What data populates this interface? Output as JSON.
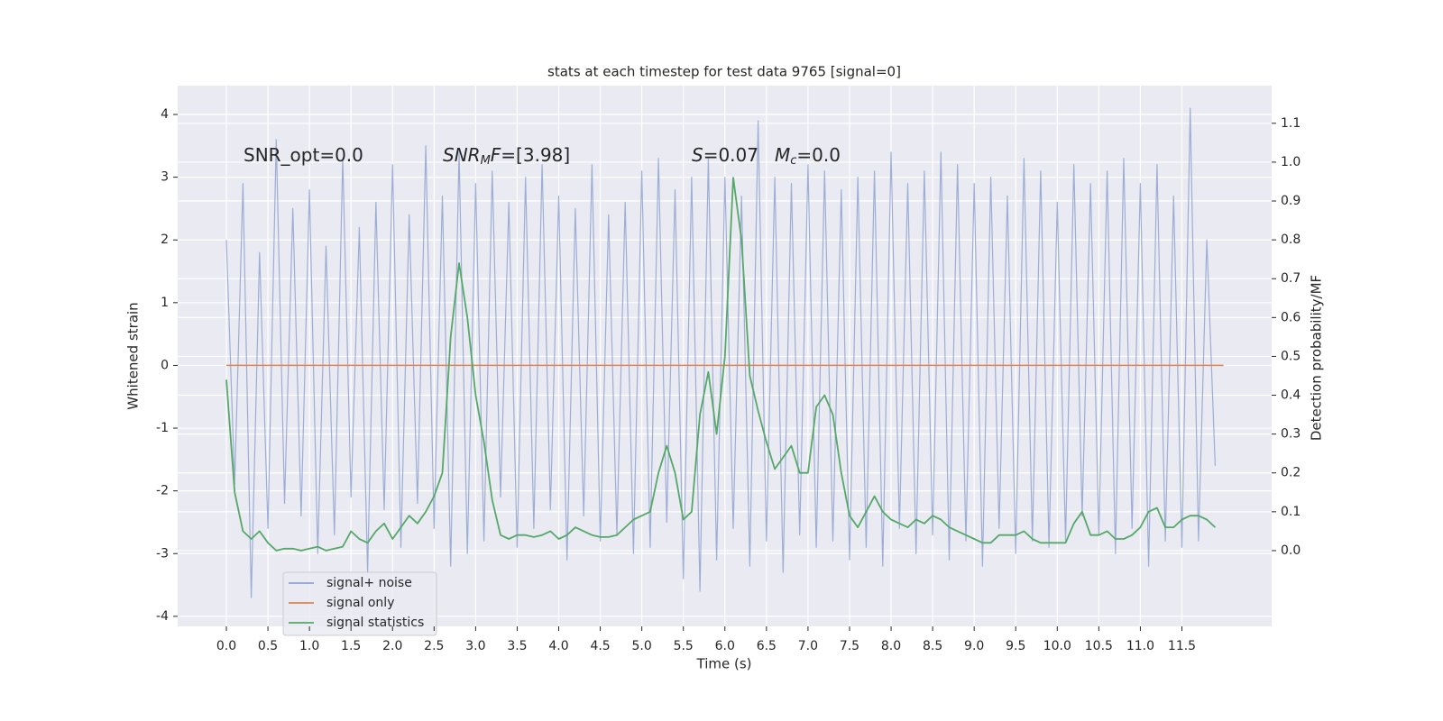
{
  "chart_data": {
    "type": "line",
    "title": "stats at each timestep for test data 9765 [signal=0]",
    "xlabel": "Time (s)",
    "ylabel": "Whitened strain",
    "y2label": "Detection probability/MF",
    "grid": true,
    "legend": "lower left",
    "xlim": [
      -0.586,
      12.58
    ],
    "ylim": [
      -4.16,
      4.46
    ],
    "y2lim": [
      -0.195,
      1.197
    ],
    "xticks": [
      {
        "value": 0,
        "label": "0.0"
      },
      0.5,
      {
        "value": 1,
        "label": "1.0"
      },
      1.5,
      {
        "value": 2,
        "label": "2.0"
      },
      2.5,
      {
        "value": 3,
        "label": "3.0"
      },
      3.5,
      {
        "value": 4,
        "label": "4.0"
      },
      4.5,
      {
        "value": 5,
        "label": "5.0"
      },
      5.5,
      {
        "value": 6,
        "label": "6.0"
      },
      6.5,
      {
        "value": 7,
        "label": "7.0"
      },
      7.5,
      {
        "value": 8,
        "label": "8.0"
      },
      8.5,
      {
        "value": 9,
        "label": "9.0"
      },
      9.5,
      {
        "value": 10,
        "label": "10.0"
      },
      10.5,
      {
        "value": 11,
        "label": "11.0"
      },
      11.5
    ],
    "yticks": [
      -4,
      -3,
      -2,
      -1,
      0,
      1,
      2,
      3,
      4
    ],
    "y2ticks": [
      {
        "value": 0,
        "label": "0.0"
      },
      0.1,
      0.2,
      0.3,
      0.4,
      0.5,
      0.6,
      0.7,
      0.8,
      0.9,
      {
        "value": 1,
        "label": "1.0"
      },
      1.1
    ],
    "annotations": [
      [
        {
          "t": "SNR_opt=0.0"
        }
      ],
      [
        {
          "t": "SNR",
          "italic": true
        },
        {
          "t": "M",
          "italic": true,
          "sub": true
        },
        {
          "t": "F",
          "italic": true
        },
        {
          "t": "=[3.98]"
        }
      ],
      [
        {
          "t": "S",
          "italic": true
        },
        {
          "t": "=0.07"
        }
      ],
      [
        {
          "t": "M",
          "italic": true
        },
        {
          "t": "c",
          "italic": true,
          "sub": true
        },
        {
          "t": "=0.0"
        }
      ]
    ],
    "x": [
      0.0,
      0.1,
      0.2,
      0.3,
      0.4,
      0.5,
      0.6,
      0.7,
      0.8,
      0.9,
      1.0,
      1.1,
      1.2,
      1.3,
      1.4,
      1.5,
      1.6,
      1.7,
      1.8,
      1.9,
      2.0,
      2.1,
      2.2,
      2.3,
      2.4,
      2.5,
      2.6,
      2.7,
      2.8,
      2.9,
      3.0,
      3.1,
      3.2,
      3.3,
      3.4,
      3.5,
      3.6,
      3.7,
      3.8,
      3.9,
      4.0,
      4.1,
      4.2,
      4.3,
      4.4,
      4.5,
      4.6,
      4.7,
      4.8,
      4.9,
      5.0,
      5.1,
      5.2,
      5.3,
      5.4,
      5.5,
      5.6,
      5.7,
      5.8,
      5.9,
      6.0,
      6.1,
      6.2,
      6.3,
      6.4,
      6.5,
      6.6,
      6.7,
      6.8,
      6.9,
      7.0,
      7.1,
      7.2,
      7.3,
      7.4,
      7.5,
      7.6,
      7.7,
      7.8,
      7.9,
      8.0,
      8.1,
      8.2,
      8.3,
      8.4,
      8.5,
      8.6,
      8.7,
      8.8,
      8.9,
      9.0,
      9.1,
      9.2,
      9.3,
      9.4,
      9.5,
      9.6,
      9.7,
      9.8,
      9.9,
      10.0,
      10.1,
      10.2,
      10.3,
      10.4,
      10.5,
      10.6,
      10.7,
      10.8,
      10.9,
      11.0,
      11.1,
      11.2,
      11.3,
      11.4,
      11.5,
      11.6,
      11.7,
      11.8,
      11.9
    ],
    "series": [
      {
        "name": "signal+ noise",
        "color": "#8fa3cf",
        "values": [
          2.0,
          -1.9,
          2.9,
          -3.7,
          1.8,
          -2.6,
          3.6,
          -2.2,
          2.5,
          -2.4,
          2.8,
          -3.0,
          1.9,
          -2.7,
          3.3,
          -2.1,
          2.2,
          -3.3,
          2.6,
          -2.3,
          3.2,
          -2.9,
          2.4,
          -2.2,
          3.5,
          -2.6,
          2.7,
          -3.2,
          3.4,
          -3.0,
          2.9,
          -2.8,
          3.1,
          -2.1,
          2.6,
          -2.9,
          3.0,
          -2.6,
          3.2,
          -2.3,
          2.7,
          -3.1,
          2.5,
          -2.4,
          3.2,
          -2.8,
          2.4,
          -2.7,
          2.6,
          -3.0,
          3.1,
          -2.9,
          3.3,
          -2.5,
          2.8,
          -3.4,
          3.0,
          -3.6,
          3.3,
          -3.1,
          3.0,
          -2.6,
          2.7,
          -3.2,
          3.9,
          -2.8,
          3.0,
          -3.3,
          2.9,
          -2.7,
          3.2,
          -2.9,
          3.1,
          -2.8,
          2.8,
          -3.1,
          3.0,
          -2.9,
          3.1,
          -3.2,
          3.4,
          -2.6,
          2.9,
          -3.0,
          3.1,
          -2.7,
          3.4,
          -3.1,
          3.2,
          -2.8,
          2.9,
          -3.2,
          3.0,
          -2.6,
          2.7,
          -3.0,
          3.3,
          -2.8,
          3.1,
          -2.9,
          2.6,
          -2.8,
          3.2,
          -2.4,
          2.9,
          -2.7,
          3.1,
          -3.0,
          3.3,
          -2.6,
          2.9,
          -3.2,
          3.2,
          -2.8,
          2.7,
          -2.9,
          4.1,
          -2.8,
          2.0,
          -1.6
        ]
      },
      {
        "name": "signal only",
        "color": "#dd8452",
        "x": [
          0.0,
          12.0
        ],
        "values": [
          0,
          0
        ]
      },
      {
        "name": "signal statistics",
        "color": "#55a868",
        "axis": "y2",
        "values": [
          0.44,
          0.15,
          0.05,
          0.03,
          0.05,
          0.02,
          0.0,
          0.005,
          0.005,
          0.0,
          0.005,
          0.01,
          0.0,
          0.005,
          0.01,
          0.05,
          0.03,
          0.02,
          0.05,
          0.07,
          0.03,
          0.06,
          0.09,
          0.07,
          0.1,
          0.14,
          0.2,
          0.55,
          0.74,
          0.6,
          0.4,
          0.28,
          0.13,
          0.04,
          0.03,
          0.04,
          0.04,
          0.035,
          0.04,
          0.05,
          0.03,
          0.04,
          0.06,
          0.05,
          0.04,
          0.035,
          0.035,
          0.04,
          0.06,
          0.08,
          0.09,
          0.1,
          0.2,
          0.27,
          0.2,
          0.08,
          0.1,
          0.35,
          0.46,
          0.3,
          0.5,
          0.96,
          0.8,
          0.45,
          0.36,
          0.28,
          0.21,
          0.24,
          0.27,
          0.2,
          0.2,
          0.37,
          0.4,
          0.35,
          0.2,
          0.09,
          0.06,
          0.1,
          0.14,
          0.1,
          0.08,
          0.07,
          0.06,
          0.08,
          0.07,
          0.09,
          0.08,
          0.06,
          0.05,
          0.04,
          0.03,
          0.02,
          0.02,
          0.04,
          0.04,
          0.04,
          0.05,
          0.03,
          0.02,
          0.02,
          0.02,
          0.02,
          0.07,
          0.1,
          0.04,
          0.04,
          0.05,
          0.03,
          0.03,
          0.04,
          0.06,
          0.1,
          0.11,
          0.06,
          0.06,
          0.08,
          0.09,
          0.09,
          0.08,
          0.06
        ]
      }
    ]
  }
}
